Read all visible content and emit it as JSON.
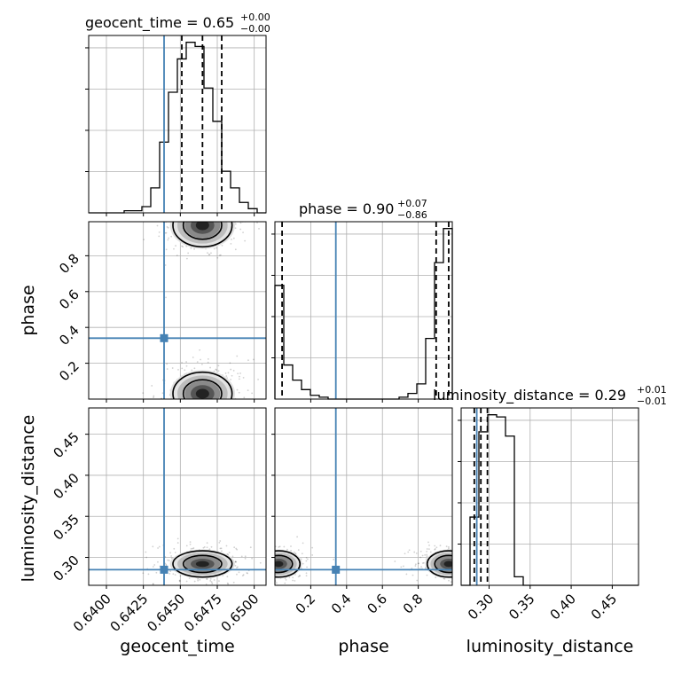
{
  "chart_data": {
    "type": "corner",
    "parameters": [
      "geocent_time",
      "phase",
      "luminosity_distance"
    ],
    "axis_labels": {
      "geocent_time": "geocent_time",
      "phase": "phase",
      "luminosity_distance": "luminosity_distance"
    },
    "titles": {
      "geocent_time": {
        "text": "geocent_time = 0.65",
        "plus": "+0.00",
        "minus": "−0.00"
      },
      "phase": {
        "text": "phase = 0.90",
        "plus": "+0.07",
        "minus": "−0.86"
      },
      "luminosity_distance": {
        "text": "luminosity_distance = 0.29",
        "plus": "+0.01",
        "minus": "−0.01"
      }
    },
    "ranges": {
      "geocent_time": [
        0.6388,
        0.6508
      ],
      "phase": [
        0.0,
        0.99
      ],
      "luminosity_distance": [
        0.266,
        0.482
      ]
    },
    "ticks": {
      "geocent_time": [
        0.64,
        0.6425,
        0.645,
        0.6475,
        0.65
      ],
      "geocent_time_labels": [
        "0.6400",
        "0.6425",
        "0.6450",
        "0.6475",
        "0.6500"
      ],
      "phase": [
        0.2,
        0.4,
        0.6,
        0.8
      ],
      "phase_labels": [
        "0.2",
        "0.4",
        "0.6",
        "0.8"
      ],
      "luminosity_distance": [
        0.3,
        0.35,
        0.4,
        0.45
      ],
      "luminosity_distance_labels": [
        "0.30",
        "0.35",
        "0.40",
        "0.45"
      ]
    },
    "truths": {
      "geocent_time": 0.6439,
      "phase": 0.34,
      "luminosity_distance": 0.285
    },
    "quantiles": {
      "geocent_time": [
        0.6451,
        0.6465,
        0.6478
      ],
      "phase": [
        0.04,
        0.9,
        0.97
      ],
      "luminosity_distance": [
        0.282,
        0.29,
        0.298
      ]
    },
    "histograms": {
      "geocent_time": [
        0,
        0,
        0,
        0,
        1,
        1,
        3,
        12,
        34,
        58,
        74,
        82,
        80,
        60,
        44,
        20,
        12,
        5,
        2,
        0
      ],
      "phase": [
        60,
        18,
        10,
        5,
        2,
        1,
        0,
        0,
        0,
        0,
        0,
        0,
        0,
        0,
        1,
        3,
        8,
        32,
        72,
        90
      ],
      "luminosity_distance": [
        0,
        32,
        72,
        80,
        79,
        70,
        4,
        0,
        0,
        0,
        0,
        0,
        0,
        0,
        0,
        0,
        0,
        0,
        0,
        0
      ]
    },
    "density_peaks": [
      {
        "x": "geocent_time",
        "y": "phase",
        "cx": 0.6465,
        "cy": 0.97,
        "sx": 0.001,
        "sy": 0.06
      },
      {
        "x": "geocent_time",
        "y": "phase",
        "cx": 0.6465,
        "cy": 0.03,
        "sx": 0.001,
        "sy": 0.06
      },
      {
        "x": "geocent_time",
        "y": "luminosity_distance",
        "cx": 0.6465,
        "cy": 0.292,
        "sx": 0.001,
        "sy": 0.008
      },
      {
        "x": "phase",
        "y": "luminosity_distance",
        "cx": 0.97,
        "cy": 0.292,
        "sx": 0.06,
        "sy": 0.008
      },
      {
        "x": "phase",
        "y": "luminosity_distance",
        "cx": 0.02,
        "cy": 0.292,
        "sx": 0.06,
        "sy": 0.008
      }
    ],
    "grid": true
  }
}
